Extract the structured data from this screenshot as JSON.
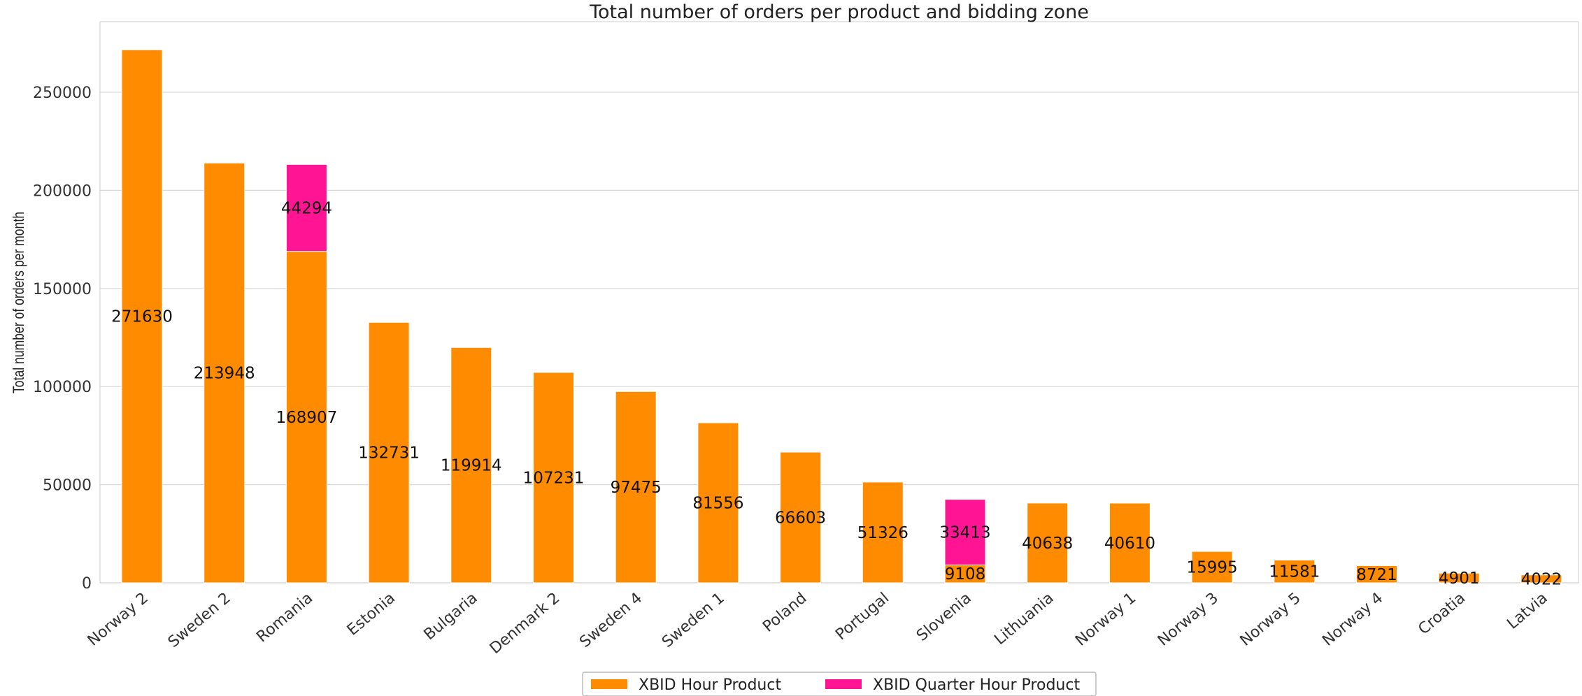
{
  "chart_data": {
    "type": "bar",
    "stacked": true,
    "title": "Total number of orders per product and bidding zone",
    "xlabel": "",
    "ylabel": "Total number of orders per month",
    "ylim": [
      0,
      290000
    ],
    "yticks": [
      0,
      50000,
      100000,
      150000,
      200000,
      250000
    ],
    "grid": true,
    "legend_position": "bottom-center",
    "categories": [
      "Norway 2",
      "Sweden 2",
      "Romania",
      "Estonia",
      "Bulgaria",
      "Denmark 2",
      "Sweden 4",
      "Sweden 1",
      "Poland",
      "Portugal",
      "Slovenia",
      "Lithuania",
      "Norway 1",
      "Norway 3",
      "Norway 5",
      "Norway 4",
      "Croatia",
      "Latvia"
    ],
    "series": [
      {
        "name": "XBID Hour Product",
        "color": "#ff8c00",
        "values": [
          271630,
          213948,
          168907,
          132731,
          119914,
          107231,
          97475,
          81556,
          66603,
          51326,
          9108,
          40638,
          40610,
          15995,
          11581,
          8721,
          4901,
          4022
        ]
      },
      {
        "name": "XBID Quarter Hour Product",
        "color": "#ff1493",
        "values": [
          0,
          0,
          44294,
          0,
          0,
          0,
          0,
          0,
          0,
          0,
          33413,
          0,
          0,
          0,
          0,
          0,
          0,
          0
        ]
      }
    ]
  }
}
